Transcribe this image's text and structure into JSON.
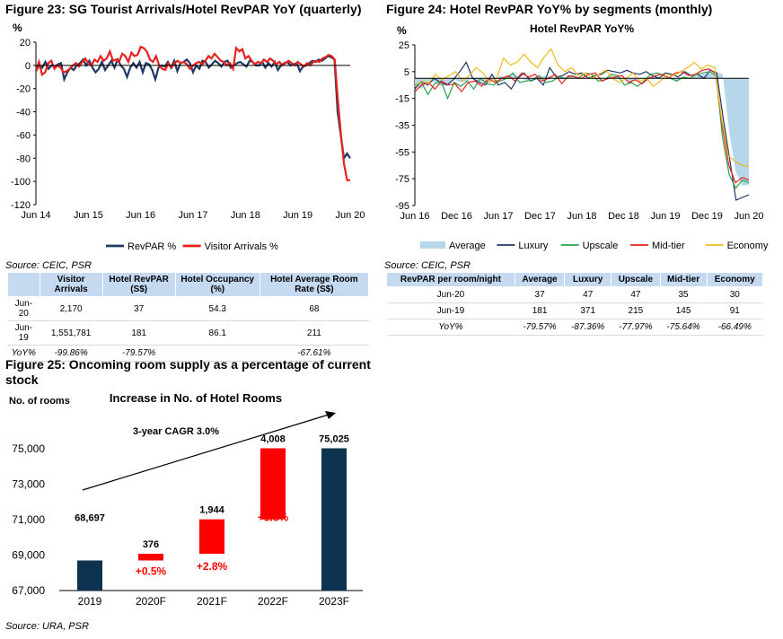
{
  "fig23": {
    "title": "Figure 23: SG Tourist Arrivals/Hotel RevPAR YoY (quarterly)",
    "source": "Source: CEIC, PSR",
    "chart_data": {
      "type": "line",
      "ylabel": "%",
      "ylim": [
        -120,
        20
      ],
      "yticks": [
        20,
        0,
        -20,
        -40,
        -60,
        -80,
        -100,
        -120
      ],
      "x_tick_labels": [
        "Jun 14",
        "Jun 15",
        "Jun 16",
        "Jun 17",
        "Jun 18",
        "Jun 19",
        "Jun 20"
      ],
      "legend_position": "bottom",
      "series": [
        {
          "name": "RevPAR %",
          "color": "#1f3864",
          "values": [
            -5,
            0,
            -2,
            3,
            -3,
            0,
            -1,
            1,
            2,
            -12,
            -6,
            -2,
            -4,
            0,
            2,
            5,
            0,
            4,
            -2,
            -6,
            -3,
            3,
            -4,
            0,
            4,
            -2,
            5,
            0,
            -3,
            -10,
            -2,
            2,
            -2,
            3,
            -6,
            2,
            1,
            -4,
            -12,
            -2,
            0,
            -1,
            3,
            -2,
            4,
            -5,
            2,
            3,
            5,
            2,
            -6,
            0,
            -3,
            4,
            3,
            -2,
            1,
            4,
            2,
            -1,
            3,
            4,
            -2,
            0,
            2,
            3,
            1,
            -1,
            4,
            3,
            0,
            0,
            3,
            -2,
            2,
            -1,
            3,
            -4,
            0,
            2,
            3,
            0,
            1,
            2,
            -5,
            -1,
            0,
            2,
            4,
            3,
            5,
            4,
            6,
            8,
            7,
            5,
            -40,
            -60,
            -80,
            -76,
            -80
          ]
        },
        {
          "name": "Visitor Arrivals %",
          "color": "#e8211d",
          "values": [
            -5,
            3,
            -8,
            -6,
            2,
            4,
            -3,
            0,
            -2,
            -6,
            -5,
            -3,
            0,
            2,
            -1,
            3,
            6,
            2,
            0,
            5,
            3,
            8,
            4,
            6,
            12,
            4,
            5,
            3,
            10,
            8,
            3,
            11,
            8,
            9,
            16,
            15,
            12,
            5,
            3,
            8,
            0,
            -3,
            -4,
            2,
            -2,
            2,
            4,
            2,
            3,
            1,
            -3,
            0,
            2,
            3,
            1,
            4,
            8,
            6,
            10,
            7,
            4,
            3,
            0,
            2,
            -3,
            15,
            12,
            14,
            6,
            8,
            4,
            1,
            3,
            2,
            5,
            3,
            6,
            4,
            1,
            3,
            0,
            2,
            4,
            2,
            0,
            3,
            1,
            -1,
            2,
            0,
            3,
            4,
            3,
            6,
            7,
            9,
            8,
            5,
            -30,
            -60,
            -85,
            -99,
            -99
          ]
        }
      ]
    },
    "table": {
      "headers": [
        "",
        "Visitor Arrivals",
        "Hotel RevPAR (S$)",
        "Hotel Occupancy (%)",
        "Hotel Average Room Rate (S$)"
      ],
      "rows": [
        [
          "Jun-20",
          "2,170",
          "37",
          "54.3",
          "68"
        ],
        [
          "Jun-19",
          "1,551,781",
          "181",
          "86.1",
          "211"
        ],
        [
          "YoY%",
          "-99.86%",
          "-79.57%",
          "",
          "-67.61%"
        ]
      ]
    }
  },
  "fig24": {
    "title": "Figure 24: Hotel RevPAR YoY% by segments (monthly)",
    "source": "Source: CEIC, PSR",
    "chart_data": {
      "type": "line",
      "title": "Hotel RevPAR YoY%",
      "ylabel": "%",
      "ylim": [
        -95,
        25
      ],
      "yticks": [
        25,
        5,
        -15,
        -35,
        -55,
        -75,
        -95
      ],
      "x_tick_labels": [
        "Jun 16",
        "Dec 16",
        "Jun 17",
        "Dec 17",
        "Jun 18",
        "Dec 18",
        "Jun 19",
        "Dec 19",
        "Jun 20"
      ],
      "legend_position": "bottom",
      "series": [
        {
          "name": "Average",
          "type": "area",
          "color": "#b6d7ea",
          "values": [
            -5,
            -8,
            -2,
            -3,
            -6,
            -4,
            -1,
            -3,
            -2,
            0,
            -3,
            -2,
            -2,
            2,
            0,
            3,
            1,
            -2,
            0,
            1,
            2,
            1,
            0,
            -1,
            2,
            1,
            0,
            1,
            -1,
            0,
            2,
            1,
            0,
            -3,
            -1,
            0,
            1,
            2,
            -1,
            0,
            -2,
            1,
            0,
            2,
            3,
            4,
            5,
            3,
            -40,
            -70,
            -80,
            -79.57
          ]
        },
        {
          "name": "Luxury",
          "color": "#1f3864",
          "values": [
            -8,
            -2,
            -5,
            0,
            -3,
            -5,
            -1,
            5,
            12,
            0,
            -3,
            -5,
            3,
            -5,
            -3,
            -8,
            0,
            4,
            -2,
            0,
            -5,
            8,
            1,
            2,
            5,
            3,
            4,
            0,
            2,
            3,
            6,
            5,
            4,
            6,
            4,
            3,
            5,
            2,
            0,
            4,
            3,
            1,
            5,
            2,
            3,
            0,
            6,
            4,
            -30,
            -60,
            -91,
            -89,
            -87
          ]
        },
        {
          "name": "Upscale",
          "color": "#2ca04c",
          "values": [
            -5,
            -3,
            -12,
            -4,
            -2,
            -15,
            -3,
            -6,
            -2,
            -8,
            0,
            -4,
            -5,
            -2,
            0,
            4,
            -3,
            -2,
            -1,
            2,
            -3,
            -2,
            1,
            0,
            2,
            0,
            4,
            3,
            -2,
            -1,
            3,
            2,
            -5,
            -3,
            -6,
            -2,
            3,
            4,
            2,
            0,
            -2,
            1,
            0,
            3,
            4,
            5,
            2,
            -45,
            -72,
            -82,
            -76,
            -78
          ]
        },
        {
          "name": "Mid-tier",
          "color": "#e8211d",
          "values": [
            -10,
            -5,
            -3,
            -8,
            -2,
            -5,
            -4,
            -10,
            -3,
            -2,
            -6,
            0,
            -3,
            0,
            2,
            -2,
            4,
            1,
            3,
            -2,
            0,
            3,
            -4,
            2,
            1,
            0,
            3,
            4,
            -2,
            0,
            1,
            2,
            -3,
            -1,
            -4,
            0,
            2,
            3,
            0,
            4,
            5,
            2,
            3,
            6,
            7,
            4,
            -35,
            -65,
            -78,
            -74,
            -76
          ]
        },
        {
          "name": "Economy",
          "color": "#f2b81e",
          "values": [
            -6,
            -2,
            -4,
            3,
            -1,
            2,
            5,
            -2,
            2,
            8,
            4,
            -3,
            0,
            15,
            10,
            12,
            18,
            12,
            8,
            16,
            22,
            10,
            5,
            8,
            2,
            4,
            0,
            3,
            6,
            0,
            -3,
            0,
            4,
            -2,
            0,
            -6,
            -2,
            3,
            2,
            5,
            8,
            12,
            7,
            10,
            8,
            -30,
            -58,
            -62,
            -65,
            -66
          ]
        }
      ]
    },
    "table": {
      "headers": [
        "RevPAR per room/night",
        "Average",
        "Luxury",
        "Upscale",
        "Mid-tier",
        "Economy"
      ],
      "rows": [
        [
          "Jun-20",
          "37",
          "47",
          "47",
          "35",
          "30"
        ],
        [
          "Jun-19",
          "181",
          "371",
          "215",
          "145",
          "91"
        ],
        [
          "YoY%",
          "-79.57%",
          "-87.36%",
          "-77.97%",
          "-75.64%",
          "-66.49%"
        ]
      ]
    }
  },
  "fig25": {
    "title": "Figure 25: Oncoming room supply as a percentage of current stock",
    "source": "Source: URA, PSR",
    "chart_data": {
      "type": "bar",
      "title": "Increase in No. of Hotel Rooms",
      "ylabel": "No. of rooms",
      "ylim": [
        67000,
        75000
      ],
      "yticks": [
        "67,000",
        "69,000",
        "71,000",
        "73,000",
        "75,000"
      ],
      "annotation": "3-year CAGR 3.0%",
      "categories": [
        "2019",
        "2020F",
        "2021F",
        "2022F",
        "2023F"
      ],
      "bars": [
        {
          "base": 67000,
          "top": 68697,
          "color": "#0e3350",
          "label": "68,697",
          "pct": ""
        },
        {
          "base": 68697,
          "top": 69073,
          "color": "#ff0000",
          "label": "376",
          "pct": "+0.5%"
        },
        {
          "base": 69073,
          "top": 71017,
          "color": "#ff0000",
          "label": "1,944",
          "pct": "+2.8%"
        },
        {
          "base": 71017,
          "top": 75025,
          "color": "#ff0000",
          "label": "4,008",
          "pct": "+5.8%"
        },
        {
          "base": 67000,
          "top": 75025,
          "color": "#0e3350",
          "label": "75,025",
          "pct": ""
        }
      ]
    }
  }
}
